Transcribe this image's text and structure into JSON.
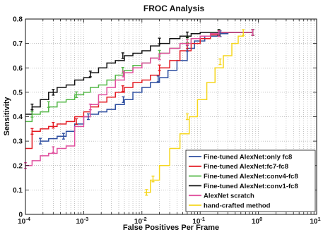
{
  "chart_data": {
    "type": "line",
    "title": "FROC Analysis",
    "xlabel": "False Positives Per Frame",
    "ylabel": "Sensitivity",
    "xscale": "log",
    "xlim": [
      0.0001,
      10
    ],
    "ylim": [
      0,
      0.8
    ],
    "xticks": [
      {
        "value": 0.0001,
        "base": "10",
        "exp": "-4"
      },
      {
        "value": 0.001,
        "base": "10",
        "exp": "-3"
      },
      {
        "value": 0.01,
        "base": "10",
        "exp": "-2"
      },
      {
        "value": 0.1,
        "base": "10",
        "exp": "-1"
      },
      {
        "value": 1,
        "base": "10",
        "exp": "0"
      },
      {
        "value": 10,
        "base": "10",
        "exp": "1"
      }
    ],
    "yticks": [
      {
        "value": 0,
        "label": "0"
      },
      {
        "value": 0.1,
        "label": "0.1"
      },
      {
        "value": 0.2,
        "label": "0.2"
      },
      {
        "value": 0.3,
        "label": "0.3"
      },
      {
        "value": 0.4,
        "label": "0.4"
      },
      {
        "value": 0.5,
        "label": "0.5"
      },
      {
        "value": 0.6,
        "label": "0.6"
      },
      {
        "value": 0.7,
        "label": "0.7"
      },
      {
        "value": 0.8,
        "label": "0.8"
      }
    ],
    "grid": true,
    "legend": "bottom-right",
    "series": [
      {
        "name": "Fine-tuned AlexNet:only fc8",
        "color": "#2e4fa0",
        "x": [
          0.00018,
          0.00025,
          0.00035,
          0.0005,
          0.0007,
          0.001,
          0.0013,
          0.0018,
          0.0025,
          0.0035,
          0.005,
          0.007,
          0.01,
          0.014,
          0.02,
          0.028,
          0.04,
          0.06,
          0.08,
          0.12,
          0.2,
          0.3,
          0.45,
          0.65,
          0.8
        ],
        "y": [
          0.3,
          0.31,
          0.32,
          0.34,
          0.37,
          0.4,
          0.41,
          0.42,
          0.43,
          0.45,
          0.47,
          0.5,
          0.52,
          0.54,
          0.56,
          0.59,
          0.63,
          0.68,
          0.71,
          0.73,
          0.74,
          0.745,
          0.745,
          0.745,
          0.745
        ],
        "errorbars": [
          {
            "x": 0.00018,
            "y": 0.3
          },
          {
            "x": 0.00045,
            "y": 0.32
          },
          {
            "x": 0.0012,
            "y": 0.4
          },
          {
            "x": 0.0048,
            "y": 0.47
          },
          {
            "x": 0.019,
            "y": 0.555
          },
          {
            "x": 0.06,
            "y": 0.68
          },
          {
            "x": 0.22,
            "y": 0.74
          },
          {
            "x": 0.8,
            "y": 0.745
          }
        ]
      },
      {
        "name": "Fine-tuned AlexNet:fc7-fc8",
        "color": "#e31b23",
        "x": [
          0.0001,
          0.00013,
          0.00018,
          0.00025,
          0.00035,
          0.0005,
          0.0007,
          0.001,
          0.0013,
          0.0018,
          0.0025,
          0.0035,
          0.005,
          0.007,
          0.01,
          0.014,
          0.02,
          0.03,
          0.045,
          0.07,
          0.1,
          0.15,
          0.22,
          0.35,
          0.55,
          0.8
        ],
        "y": [
          0.27,
          0.34,
          0.35,
          0.36,
          0.37,
          0.38,
          0.4,
          0.42,
          0.44,
          0.46,
          0.48,
          0.5,
          0.52,
          0.54,
          0.55,
          0.57,
          0.6,
          0.63,
          0.67,
          0.7,
          0.72,
          0.735,
          0.745,
          0.745,
          0.745,
          0.745
        ],
        "errorbars": [
          {
            "x": 0.00013,
            "y": 0.34
          },
          {
            "x": 0.0003,
            "y": 0.365
          },
          {
            "x": 0.00075,
            "y": 0.38
          },
          {
            "x": 0.0047,
            "y": 0.515
          },
          {
            "x": 0.02,
            "y": 0.6
          },
          {
            "x": 0.06,
            "y": 0.69
          },
          {
            "x": 0.21,
            "y": 0.74
          },
          {
            "x": 0.8,
            "y": 0.745
          }
        ]
      },
      {
        "name": "Fine-tuned AlexNet:conv4-fc8",
        "color": "#55b848",
        "x": [
          0.0001,
          0.00013,
          0.00018,
          0.00025,
          0.00035,
          0.0005,
          0.0007,
          0.001,
          0.0013,
          0.0018,
          0.0025,
          0.0035,
          0.005,
          0.007,
          0.01,
          0.014,
          0.02,
          0.03,
          0.045,
          0.07,
          0.1,
          0.15,
          0.22,
          0.35,
          0.55,
          0.8
        ],
        "y": [
          0.38,
          0.41,
          0.42,
          0.44,
          0.46,
          0.47,
          0.49,
          0.5,
          0.52,
          0.53,
          0.55,
          0.57,
          0.59,
          0.61,
          0.62,
          0.64,
          0.66,
          0.68,
          0.7,
          0.72,
          0.73,
          0.74,
          0.745,
          0.745,
          0.745,
          0.745
        ],
        "errorbars": [
          {
            "x": 0.00013,
            "y": 0.41
          },
          {
            "x": 0.00025,
            "y": 0.45
          },
          {
            "x": 0.00075,
            "y": 0.49
          },
          {
            "x": 0.0047,
            "y": 0.59
          },
          {
            "x": 0.02,
            "y": 0.66
          },
          {
            "x": 0.06,
            "y": 0.715
          },
          {
            "x": 0.21,
            "y": 0.745
          },
          {
            "x": 0.8,
            "y": 0.745
          }
        ]
      },
      {
        "name": "Fine-tuned AlexNet:conv1-fc8",
        "color": "#111111",
        "x": [
          0.0001,
          0.00013,
          0.00018,
          0.00025,
          0.00035,
          0.0005,
          0.0007,
          0.001,
          0.0013,
          0.0018,
          0.0025,
          0.0035,
          0.005,
          0.007,
          0.01,
          0.014,
          0.02,
          0.03,
          0.045,
          0.07,
          0.1,
          0.15,
          0.22,
          0.35,
          0.55,
          0.8
        ],
        "y": [
          0.41,
          0.44,
          0.47,
          0.5,
          0.52,
          0.53,
          0.55,
          0.56,
          0.58,
          0.6,
          0.62,
          0.63,
          0.65,
          0.66,
          0.67,
          0.69,
          0.7,
          0.72,
          0.73,
          0.74,
          0.745,
          0.745,
          0.745,
          0.745,
          0.745,
          0.745
        ],
        "errorbars": [
          {
            "x": 0.00013,
            "y": 0.44
          },
          {
            "x": 0.0003,
            "y": 0.5
          },
          {
            "x": 0.0013,
            "y": 0.575
          },
          {
            "x": 0.0047,
            "y": 0.65
          },
          {
            "x": 0.02,
            "y": 0.71
          },
          {
            "x": 0.06,
            "y": 0.735
          },
          {
            "x": 0.21,
            "y": 0.745
          },
          {
            "x": 0.8,
            "y": 0.745
          }
        ]
      },
      {
        "name": "AlexNet scratch",
        "color": "#e0509e",
        "x": [
          0.0001,
          0.00013,
          0.00018,
          0.00025,
          0.00035,
          0.0005,
          0.0007,
          0.001,
          0.0013,
          0.0018,
          0.0025,
          0.0035,
          0.005,
          0.007,
          0.01,
          0.014,
          0.02,
          0.03,
          0.045,
          0.07,
          0.1,
          0.15,
          0.22,
          0.35,
          0.55,
          0.8
        ],
        "y": [
          0.2,
          0.22,
          0.24,
          0.25,
          0.27,
          0.28,
          0.36,
          0.4,
          0.45,
          0.49,
          0.52,
          0.55,
          0.58,
          0.6,
          0.62,
          0.64,
          0.66,
          0.68,
          0.7,
          0.72,
          0.73,
          0.74,
          0.745,
          0.745,
          0.745,
          0.745
        ],
        "errorbars": [
          {
            "x": 0.0001,
            "y": 0.2
          },
          {
            "x": 0.0003,
            "y": 0.265
          },
          {
            "x": 0.0013,
            "y": 0.44
          },
          {
            "x": 0.0048,
            "y": 0.575
          },
          {
            "x": 0.02,
            "y": 0.645
          },
          {
            "x": 0.06,
            "y": 0.705
          },
          {
            "x": 0.21,
            "y": 0.74
          },
          {
            "x": 0.8,
            "y": 0.745
          }
        ]
      },
      {
        "name": "hand-crafted method",
        "color": "#f5d61e",
        "x": [
          0.011,
          0.014,
          0.02,
          0.03,
          0.045,
          0.065,
          0.09,
          0.13,
          0.18,
          0.25,
          0.35,
          0.45,
          0.55
        ],
        "y": [
          0.09,
          0.14,
          0.2,
          0.27,
          0.33,
          0.4,
          0.47,
          0.54,
          0.6,
          0.65,
          0.7,
          0.73,
          0.745
        ],
        "errorbars": [
          {
            "x": 0.012,
            "y": 0.09
          },
          {
            "x": 0.0155,
            "y": 0.145
          },
          {
            "x": 0.06,
            "y": 0.4
          },
          {
            "x": 0.22,
            "y": 0.625
          },
          {
            "x": 0.55,
            "y": 0.745
          }
        ]
      }
    ]
  }
}
